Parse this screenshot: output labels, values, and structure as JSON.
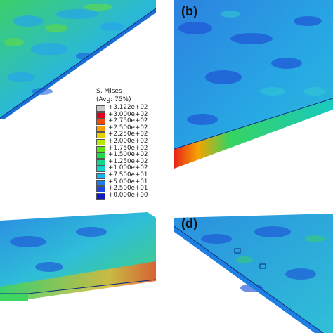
{
  "legend": {
    "title": "S, Mises",
    "subtitle": "(Avg: 75%)",
    "levels": [
      {
        "label": "+3.122e+02",
        "color": "#c8c8c8"
      },
      {
        "label": "+3.000e+02",
        "color": "#e1001f"
      },
      {
        "label": "+2.750e+02",
        "color": "#f24a0b"
      },
      {
        "label": "+2.500e+02",
        "color": "#f7a000"
      },
      {
        "label": "+2.250e+02",
        "color": "#e6d200"
      },
      {
        "label": "+2.000e+02",
        "color": "#b6ea00"
      },
      {
        "label": "+1.750e+02",
        "color": "#63e21a"
      },
      {
        "label": "+1.500e+02",
        "color": "#21dc45"
      },
      {
        "label": "+1.250e+02",
        "color": "#10d68e"
      },
      {
        "label": "+1.000e+02",
        "color": "#12d2cb"
      },
      {
        "label": "+7.500e+01",
        "color": "#18b3e8"
      },
      {
        "label": "+5.000e+01",
        "color": "#1b7dec"
      },
      {
        "label": "+2.500e+01",
        "color": "#1c45e2"
      },
      {
        "label": "+0.000e+00",
        "color": "#1218c8"
      }
    ]
  },
  "panels": {
    "b": {
      "label": "(b)"
    },
    "d": {
      "label": "(d)"
    }
  },
  "colors": {
    "plate_top_mid": "#30b6e0",
    "plate_green": "#3fd06a",
    "plate_blue": "#2a73d8",
    "edge_hot": "#e23a1a"
  }
}
